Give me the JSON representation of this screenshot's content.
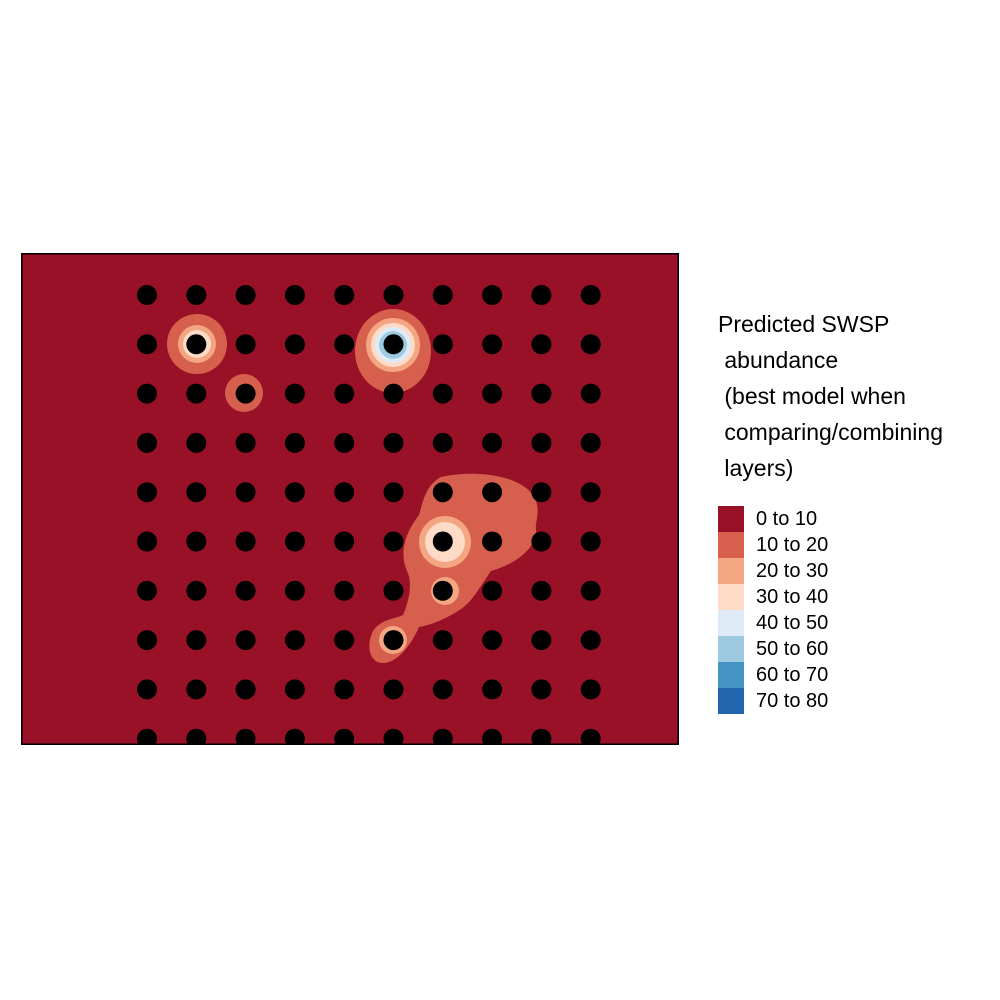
{
  "legend": {
    "title_lines": [
      "Predicted SWSP",
      " abundance",
      " (best model when",
      " comparing/combining",
      " layers)"
    ],
    "classes": [
      {
        "label": "0 to 10",
        "color": "#991127"
      },
      {
        "label": "10 to 20",
        "color": "#D6604D"
      },
      {
        "label": "20 to 30",
        "color": "#F4A582"
      },
      {
        "label": "30 to 40",
        "color": "#FDDBC7"
      },
      {
        "label": "40 to 50",
        "color": "#DEEBF7"
      },
      {
        "label": "50 to 60",
        "color": "#9ECAE1"
      },
      {
        "label": "60 to 70",
        "color": "#4393C3"
      },
      {
        "label": "70 to 80",
        "color": "#2166AC"
      }
    ]
  },
  "map": {
    "background_class": "0 to 10",
    "survey_point_color": "#000000",
    "survey_grid": {
      "columns": 10,
      "rows": 10
    }
  }
}
